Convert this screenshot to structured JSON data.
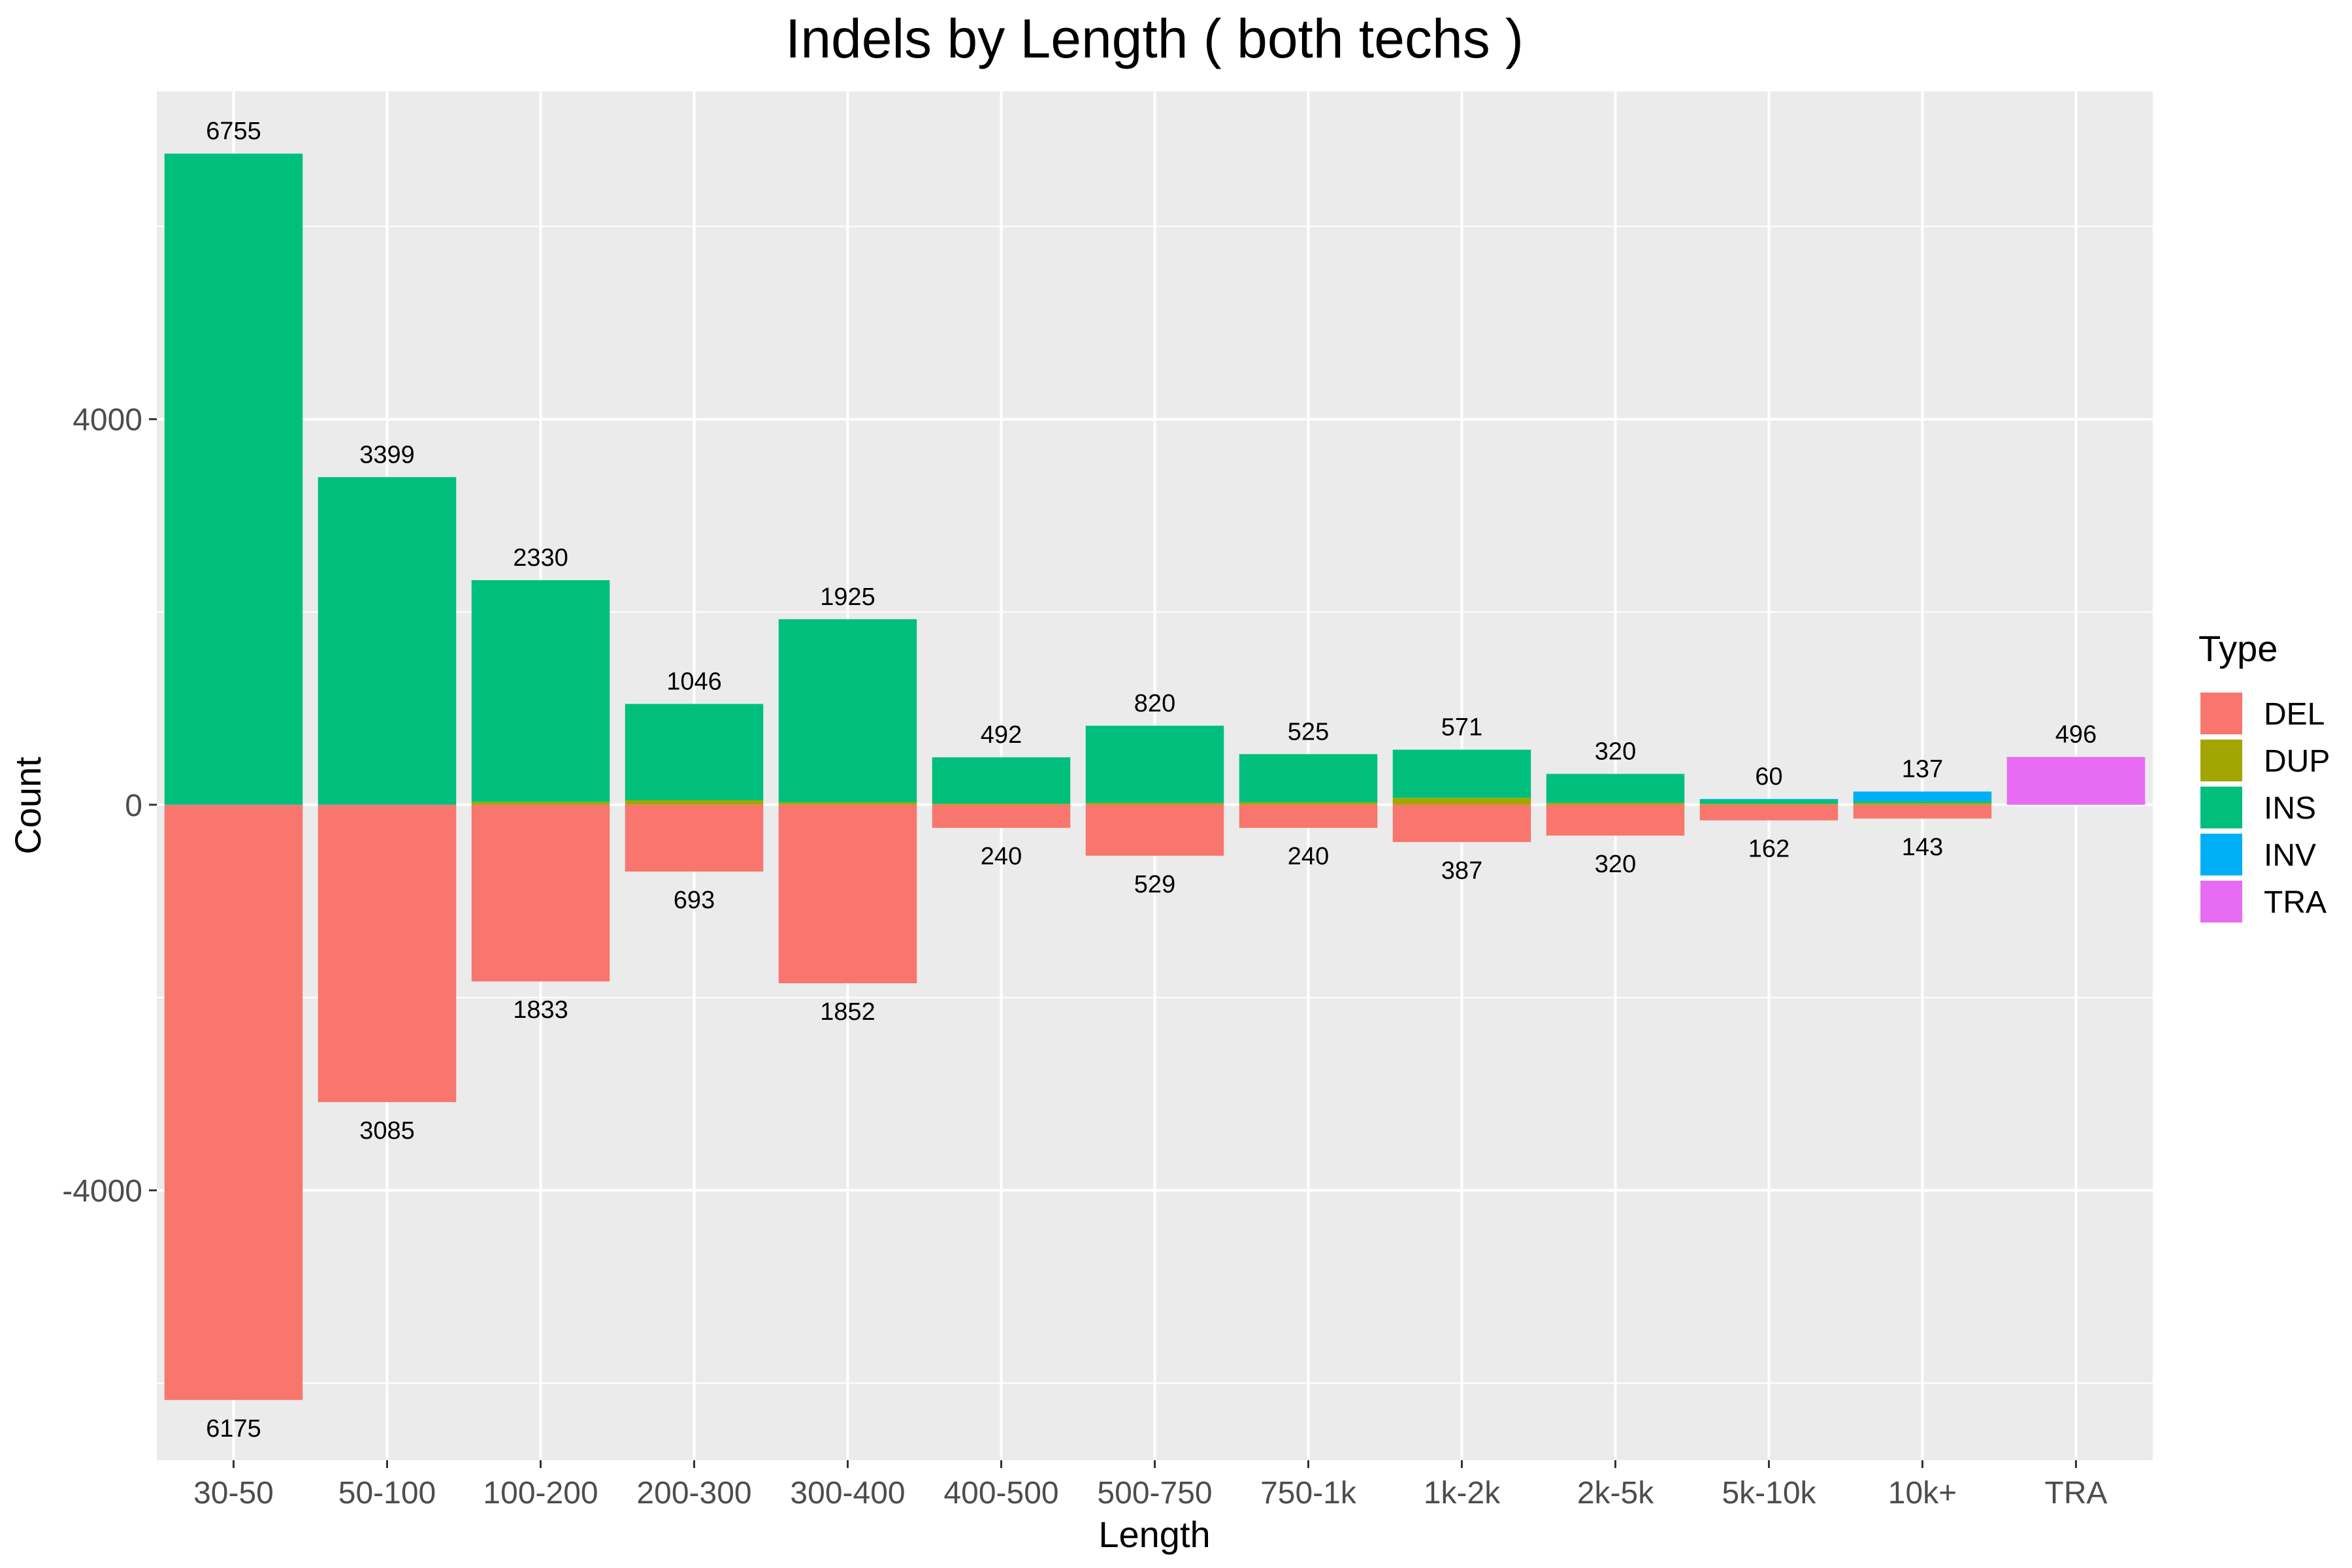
{
  "chart_data": {
    "type": "bar",
    "stacked": true,
    "diverging": true,
    "title": "Indels by Length ( both techs )",
    "xlabel": "Length",
    "ylabel": "Count",
    "ylim": [
      -6800,
      7400
    ],
    "yticks": [
      -4000,
      0,
      4000
    ],
    "grid": true,
    "legend_position": "right",
    "legend_title": "Type",
    "categories": [
      "30-50",
      "50-100",
      "100-200",
      "200-300",
      "300-400",
      "400-500",
      "500-750",
      "750-1k",
      "1k-2k",
      "2k-5k",
      "5k-10k",
      "10k+",
      "TRA"
    ],
    "series": [
      {
        "name": "DEL",
        "color": "#F8766D",
        "values": [
          -6175,
          -3085,
          -1833,
          -693,
          -1852,
          -240,
          -529,
          -240,
          -387,
          -320,
          -162,
          -143,
          0
        ]
      },
      {
        "name": "DUP",
        "color": "#A3A500",
        "values": [
          0,
          0,
          30,
          46,
          25,
          12,
          20,
          25,
          71,
          20,
          10,
          17,
          0
        ]
      },
      {
        "name": "INS",
        "color": "#00BF7D",
        "values": [
          6755,
          3399,
          2300,
          1000,
          1900,
          480,
          800,
          500,
          500,
          300,
          40,
          20,
          0
        ]
      },
      {
        "name": "INV",
        "color": "#00B0F6",
        "values": [
          0,
          0,
          0,
          0,
          0,
          0,
          0,
          0,
          0,
          0,
          10,
          100,
          0
        ]
      },
      {
        "name": "TRA",
        "color": "#E76BF3",
        "values": [
          0,
          0,
          0,
          0,
          0,
          0,
          0,
          0,
          0,
          0,
          0,
          0,
          496
        ]
      }
    ],
    "pos_labels": [
      "6755",
      "3399",
      "2330",
      "1046",
      "1925",
      "492",
      "820",
      "525",
      "571",
      "320",
      "60",
      "137",
      "496"
    ],
    "neg_labels": [
      "6175",
      "3085",
      "1833",
      "693",
      "1852",
      "240",
      "529",
      "240",
      "387",
      "320",
      "162",
      "143",
      ""
    ]
  }
}
